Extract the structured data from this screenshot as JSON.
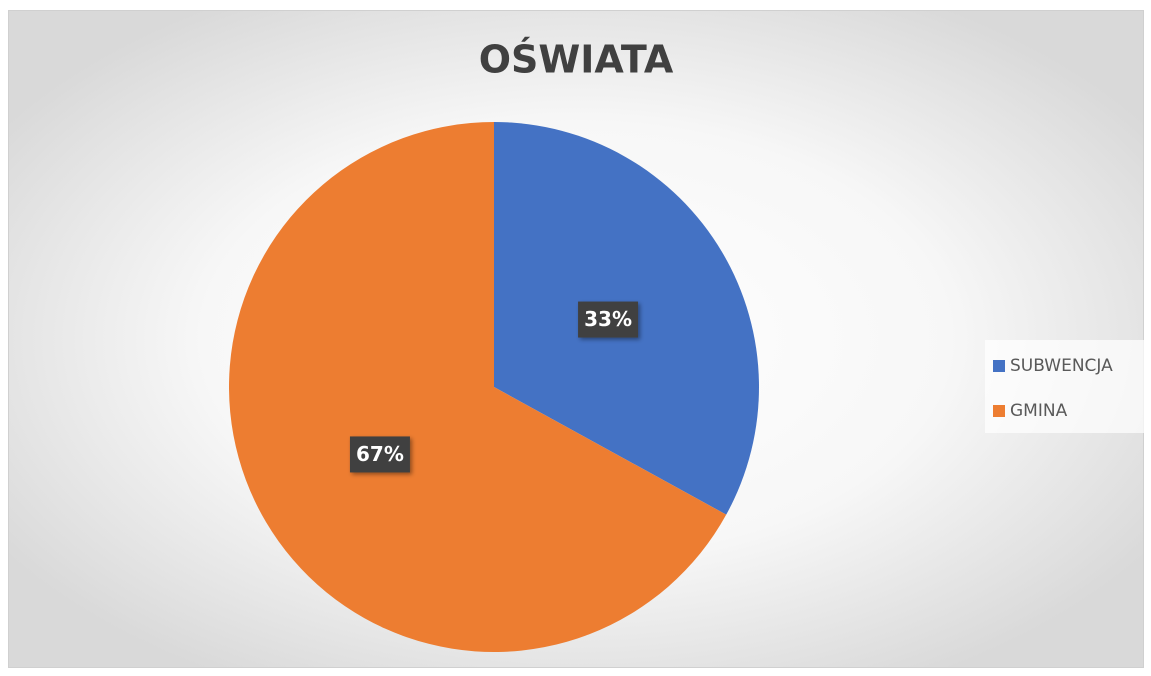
{
  "chart_data": {
    "type": "pie",
    "title": "OŚWIATA",
    "categories": [
      "SUBWENCJA",
      "GMINA"
    ],
    "values": [
      33,
      67
    ],
    "value_labels": [
      "33%",
      "67%"
    ],
    "colors": [
      "#4472c4",
      "#ed7d31"
    ],
    "legend": "right"
  }
}
